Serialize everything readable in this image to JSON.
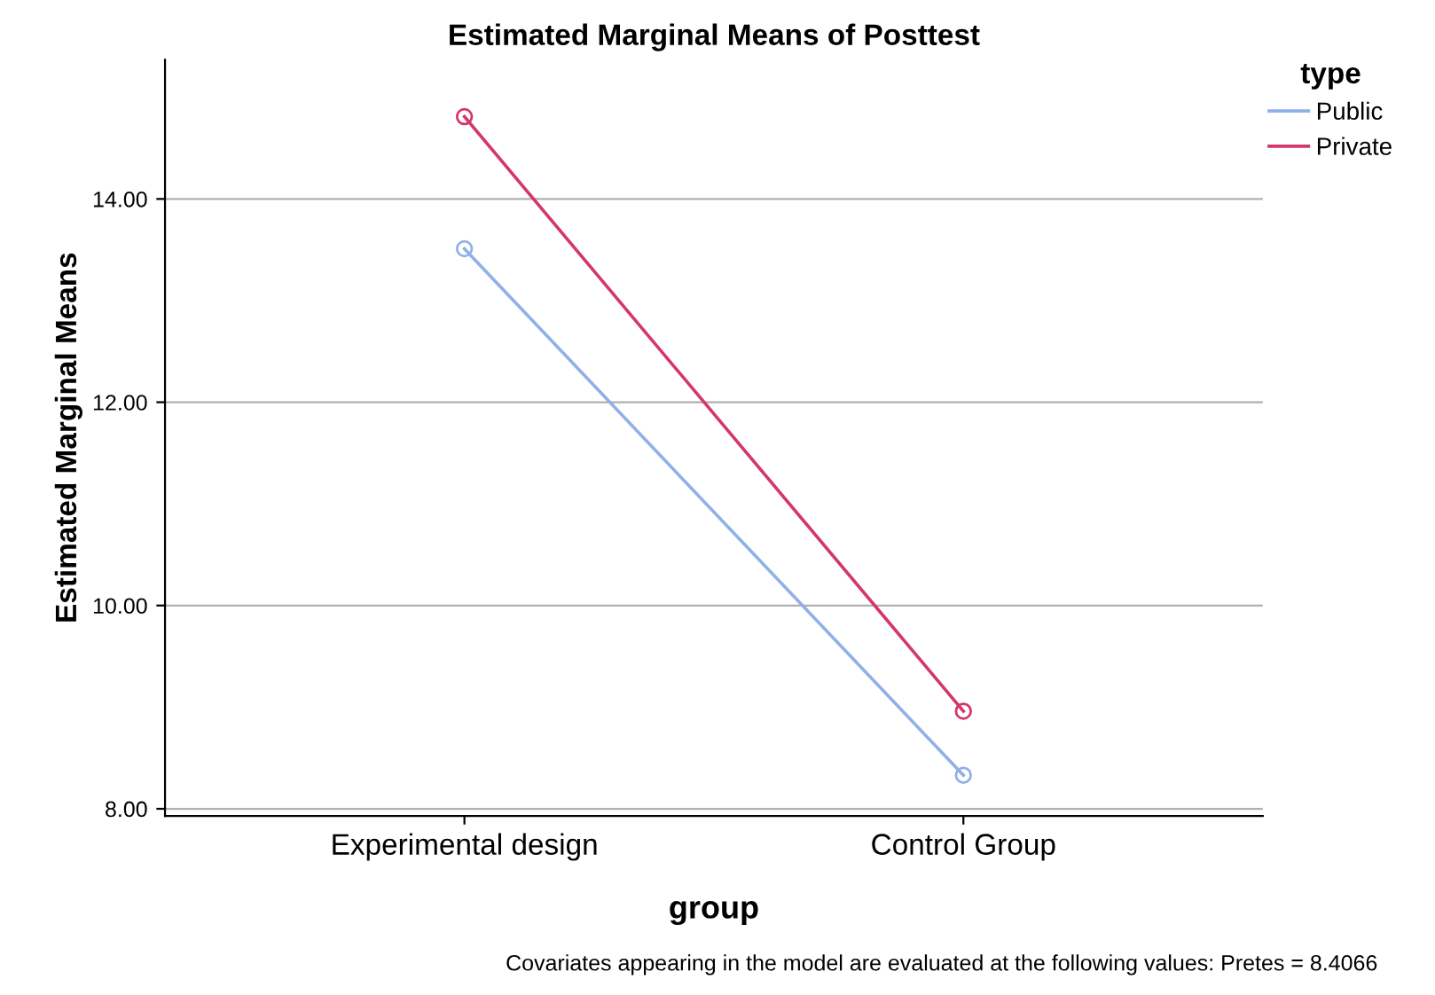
{
  "chart_data": {
    "type": "line",
    "title": "Estimated Marginal Means of Posttest",
    "xlabel": "group",
    "ylabel": "Estimated Marginal Means",
    "legend_title": "type",
    "categories": [
      "Experimental design",
      "Control Group"
    ],
    "series": [
      {
        "name": "Public",
        "color": "#8fb1e8",
        "values": [
          13.51,
          8.33
        ]
      },
      {
        "name": "Private",
        "color": "#d4376a",
        "values": [
          14.81,
          8.96
        ]
      }
    ],
    "ylim": [
      7.93,
      15.37
    ],
    "yticks": [
      {
        "value": 8,
        "label": "8.00"
      },
      {
        "value": 10,
        "label": "10.00"
      },
      {
        "value": 12,
        "label": "12.00"
      },
      {
        "value": 14,
        "label": "14.00"
      }
    ],
    "grid": "y",
    "legend": "top right",
    "marker": "circle",
    "line_style": "solid",
    "annotations": [
      "Covariates appearing in the model are evaluated at the following values: Pretes = 8.4066"
    ]
  }
}
